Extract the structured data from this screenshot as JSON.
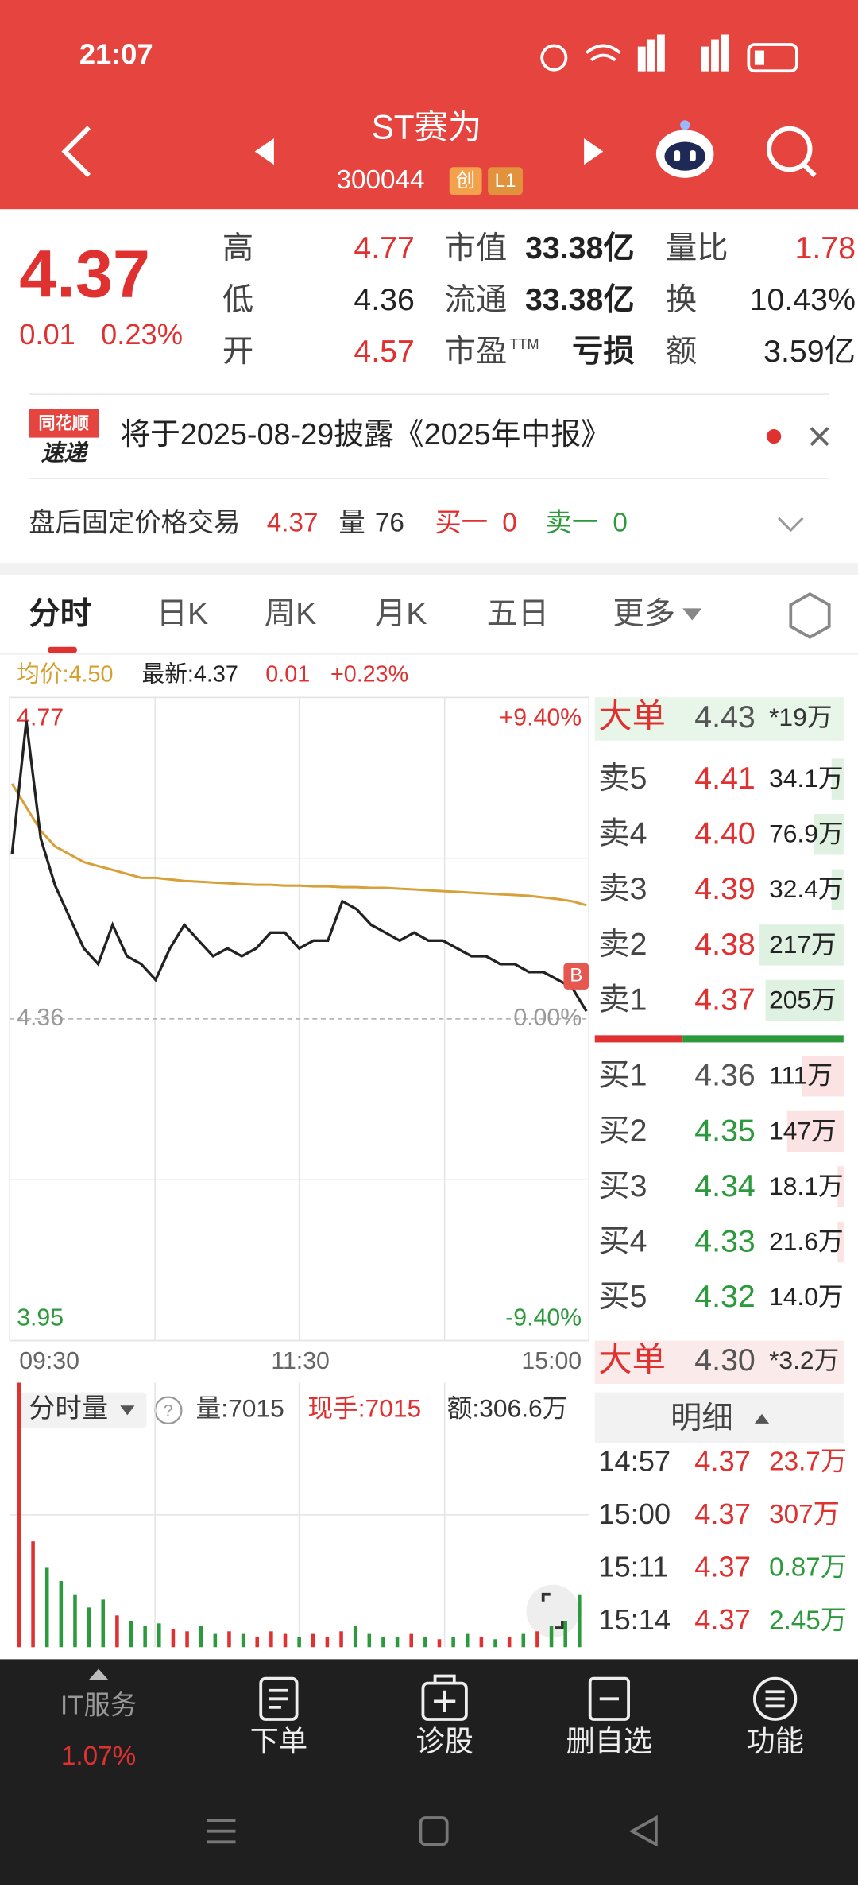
{
  "status_bar": {
    "time": "21:07"
  },
  "header": {
    "name": "ST赛为",
    "code": "300044",
    "badges": [
      "创",
      "L1"
    ]
  },
  "quote": {
    "price": "4.37",
    "change": "0.01",
    "change_pct": "0.23%",
    "stats": [
      [
        {
          "label": "高",
          "value": "4.77"
        },
        {
          "label": "市值",
          "value": "33.38亿"
        },
        {
          "label": "量比",
          "value": "1.78"
        }
      ],
      [
        {
          "label": "低",
          "value": "4.36"
        },
        {
          "label": "流通",
          "value": "33.38亿"
        },
        {
          "label": "换",
          "value": "10.43%"
        }
      ],
      [
        {
          "label": "开",
          "value": "4.57"
        },
        {
          "label": "市盈",
          "label_sup": "TTM",
          "value": "亏损"
        },
        {
          "label": "额",
          "value": "3.59亿"
        }
      ]
    ]
  },
  "notice": {
    "logo_top": "同花顺",
    "logo_bottom": "速递",
    "text": "将于2025-08-29披露《2025年中报》"
  },
  "after_hours": {
    "label": "盘后固定价格交易",
    "price": "4.37",
    "volume_label": "量",
    "volume": "76",
    "bid_label": "买一",
    "bid": "0",
    "ask_label": "卖一",
    "ask": "0"
  },
  "tabs": [
    "分时",
    "日K",
    "周K",
    "月K",
    "五日",
    "更多"
  ],
  "chart_info": {
    "avg": "均价:4.50",
    "latest": "最新:4.37",
    "change": "0.01",
    "change_pct": "+0.23%"
  },
  "chart_data": {
    "type": "line",
    "ylim": [
      3.95,
      4.77
    ],
    "yticks": [
      4.77,
      4.36,
      3.95
    ],
    "pct_ticks": [
      "+9.40%",
      "0.00%",
      "-9.40%"
    ],
    "x_labels": [
      "09:30",
      "11:30",
      "15:00"
    ],
    "marker": "B",
    "series": [
      {
        "color": "#222222",
        "values": [
          4.57,
          4.74,
          4.59,
          4.53,
          4.49,
          4.45,
          4.43,
          4.48,
          4.44,
          4.43,
          4.41,
          4.45,
          4.48,
          4.46,
          4.44,
          4.45,
          4.44,
          4.45,
          4.47,
          4.47,
          4.45,
          4.46,
          4.46,
          4.51,
          4.5,
          4.48,
          4.47,
          4.46,
          4.47,
          4.46,
          4.46,
          4.45,
          4.44,
          4.44,
          4.43,
          4.43,
          4.42,
          4.42,
          4.41,
          4.4,
          4.37
        ]
      },
      {
        "color": "#d9a03a",
        "values": [
          4.66,
          4.63,
          4.6,
          4.58,
          4.57,
          4.56,
          4.555,
          4.55,
          4.545,
          4.54,
          4.54,
          4.538,
          4.536,
          4.535,
          4.534,
          4.533,
          4.532,
          4.531,
          4.531,
          4.53,
          4.53,
          4.529,
          4.529,
          4.528,
          4.528,
          4.527,
          4.527,
          4.526,
          4.525,
          4.524,
          4.523,
          4.522,
          4.521,
          4.52,
          4.519,
          4.518,
          4.517,
          4.515,
          4.513,
          4.51,
          4.505
        ]
      }
    ],
    "volume": {
      "ylim": [
        0,
        100
      ],
      "values": [
        100,
        40,
        30,
        25,
        20,
        15,
        18,
        12,
        10,
        8,
        9,
        7,
        6,
        8,
        5,
        6,
        5,
        4,
        6,
        5,
        4,
        5,
        4,
        6,
        8,
        5,
        4,
        4,
        5,
        4,
        3,
        4,
        5,
        4,
        3,
        4,
        5,
        6,
        8,
        10,
        20
      ]
    }
  },
  "volume_panel": {
    "label": "分时量",
    "amount": "量:7015",
    "hand": "现手:7015",
    "turnover": "额:306.6万"
  },
  "order_book": {
    "big_sell": {
      "label": "大单",
      "price": "4.43",
      "volume": "*19万"
    },
    "asks": [
      {
        "label": "卖5",
        "price": "4.41",
        "volume": "34.1万"
      },
      {
        "label": "卖4",
        "price": "4.40",
        "volume": "76.9万"
      },
      {
        "label": "卖3",
        "price": "4.39",
        "volume": "32.4万"
      },
      {
        "label": "卖2",
        "price": "4.38",
        "volume": "217万"
      },
      {
        "label": "卖1",
        "price": "4.37",
        "volume": "205万"
      }
    ],
    "bids": [
      {
        "label": "买1",
        "price": "4.36",
        "volume": "111万"
      },
      {
        "label": "买2",
        "price": "4.35",
        "volume": "147万"
      },
      {
        "label": "买3",
        "price": "4.34",
        "volume": "18.1万"
      },
      {
        "label": "买4",
        "price": "4.33",
        "volume": "21.6万"
      },
      {
        "label": "买5",
        "price": "4.32",
        "volume": "14.0万"
      }
    ],
    "big_buy": {
      "label": "大单",
      "price": "4.30",
      "volume": "*3.2万"
    },
    "detail_title": "明细",
    "trades": [
      {
        "time": "14:57",
        "price": "4.37",
        "volume": "23.7万"
      },
      {
        "time": "15:00",
        "price": "4.37",
        "volume": "307万"
      },
      {
        "time": "15:11",
        "price": "4.37",
        "volume": "0.87万"
      },
      {
        "time": "15:14",
        "price": "4.37",
        "volume": "2.45万"
      }
    ]
  },
  "bottom_nav": {
    "sector": "IT服务",
    "sector_change": "1.07%",
    "items": [
      "下单",
      "诊股",
      "删自选",
      "功能"
    ]
  }
}
